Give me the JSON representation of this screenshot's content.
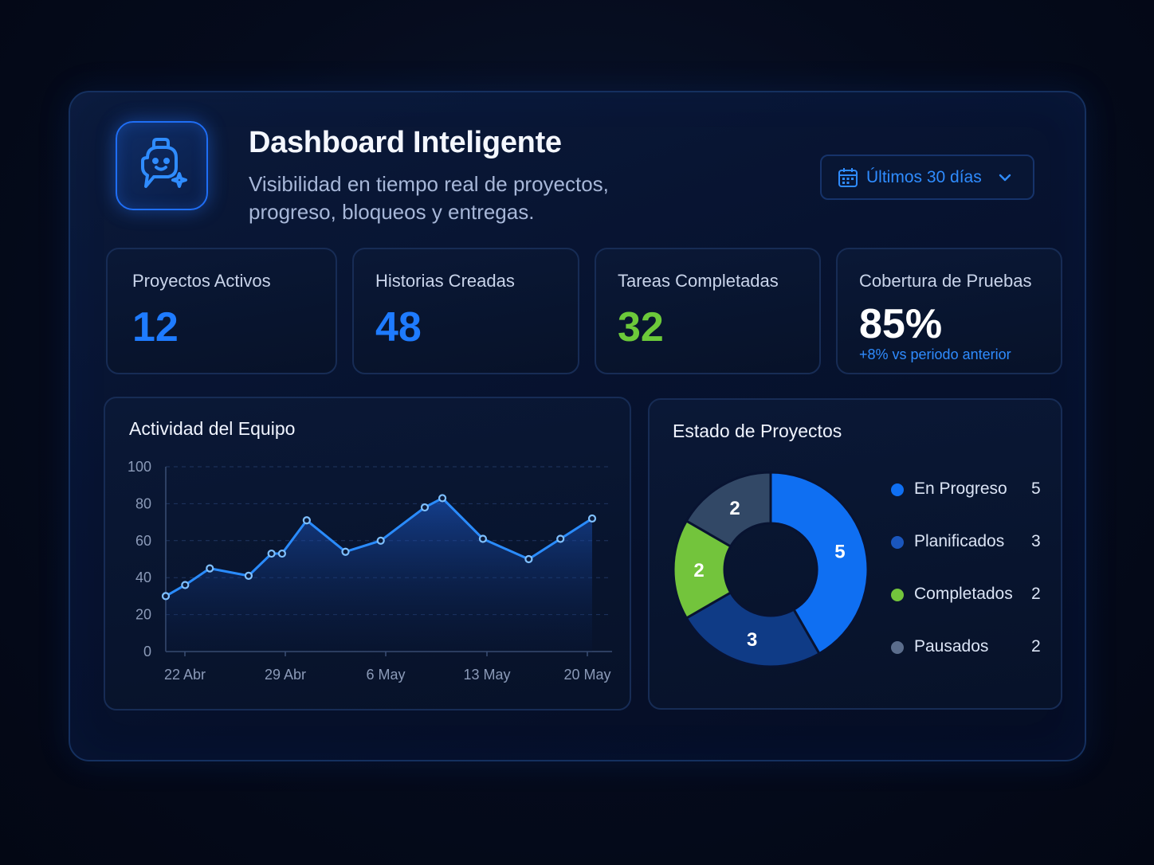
{
  "header": {
    "title": "Dashboard Inteligente",
    "subtitle": "Visibilidad en tiempo real de proyectos, progreso, bloqueos y entregas.",
    "date_range_label": "Últimos 30 días"
  },
  "stats": [
    {
      "label": "Proyectos Activos",
      "value": "12",
      "color": "#1e7bff"
    },
    {
      "label": "Historias Creadas",
      "value": "48",
      "color": "#1e7bff"
    },
    {
      "label": "Tareas Completadas",
      "value": "32",
      "color": "#6cc93a"
    },
    {
      "label": "Cobertura de Pruebas",
      "value": "85%",
      "color": "#ffffff",
      "sub": "+8% vs periodo anterior"
    }
  ],
  "activity": {
    "title": "Actividad del Equipo"
  },
  "projects": {
    "title": "Estado de Proyectos"
  },
  "chart_data": [
    {
      "type": "area",
      "title": "Actividad del Equipo",
      "xlabel": "",
      "ylabel": "",
      "ylim": [
        0,
        100
      ],
      "yticks": [
        0,
        20,
        40,
        60,
        80,
        100
      ],
      "xticks": [
        "22 Abr",
        "29 Abr",
        "6 May",
        "13 May",
        "20 May"
      ],
      "x": [
        0,
        0.55,
        1.25,
        2.35,
        3.0,
        3.3,
        4.0,
        5.1,
        6.1,
        7.35,
        7.85,
        9.0,
        10.3,
        11.2,
        12.1
      ],
      "values": [
        30,
        36,
        45,
        41,
        53,
        53,
        71,
        54,
        60,
        78,
        83,
        61,
        50,
        61,
        72
      ],
      "grid": "horizontal-dashed",
      "color": "#2a8cff"
    },
    {
      "type": "pie",
      "title": "Estado de Proyectos",
      "donut": true,
      "series": [
        {
          "name": "En Progreso",
          "value": 5,
          "color": "#0f6ff2"
        },
        {
          "name": "Planificados",
          "value": 3,
          "color": "#0f3b86"
        },
        {
          "name": "Completados",
          "value": 2,
          "color": "#73c43c"
        },
        {
          "name": "Pausados",
          "value": 2,
          "color": "#324866"
        }
      ],
      "legend_position": "right"
    }
  ]
}
